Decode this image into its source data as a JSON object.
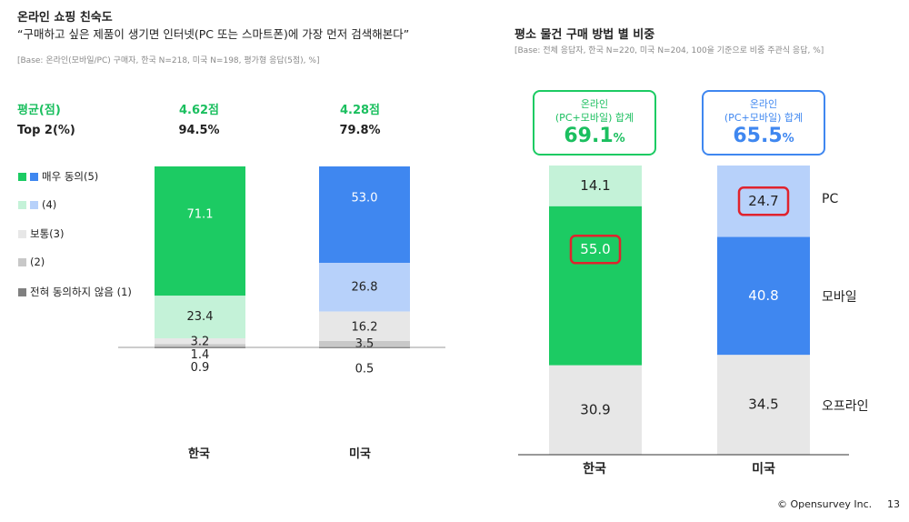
{
  "left": {
    "title": "온라인 쇼핑 친숙도",
    "subtitle": "“구매하고 싶은 제품이 생기면 인터넷(PC 또는 스마트폰)에 가장 먼저 검색해본다”",
    "base": "[Base: 온라인(모바일/PC) 구매자, 한국 N=218, 미국 N=198, 평가형 응답(5점), %]",
    "avg_label": "평균(점)",
    "top2_label": "Top 2(%)",
    "legend": [
      {
        "label": "매우 동의(5)",
        "colors": [
          "#1ccb63",
          "#3f87f0"
        ]
      },
      {
        "label": "(4)",
        "colors": [
          "#c4f2d8",
          "#b7d1fa"
        ]
      },
      {
        "label": "보통(3)",
        "colors": [
          "#e7e7e7"
        ]
      },
      {
        "label": "(2)",
        "colors": [
          "#c8c8c8"
        ]
      },
      {
        "label": "전혀 동의하지 않음 (1)",
        "colors": [
          "#808080"
        ]
      }
    ]
  },
  "right": {
    "title": "평소 물건 구매 방법 별 비중",
    "base": "[Base: 전체 응답자, 한국 N=220, 미국 N=204, 100을 기준으로 비중 주관식 응답, %]",
    "callouts": [
      {
        "label_line1": "온라인",
        "label_line2": "(PC+모바일) 합계",
        "value": "69.1",
        "unit": "%",
        "color": "#1ccb63"
      },
      {
        "label_line1": "온라인",
        "label_line2": "(PC+모바일) 합계",
        "value": "65.5",
        "unit": "%",
        "color": "#3f87f0"
      }
    ]
  },
  "chart_data": [
    {
      "type": "bar",
      "stacked": true,
      "title": "온라인 쇼핑 친숙도",
      "categories": [
        "한국",
        "미국"
      ],
      "averages": [
        "4.62점",
        "4.28점"
      ],
      "top2": [
        "94.5%",
        "79.8%"
      ],
      "series": [
        {
          "name": "매우 동의(5)",
          "values": [
            71.1,
            53.0
          ],
          "labels": [
            "71.1",
            "53.0"
          ],
          "colors": [
            "#1ccb63",
            "#3f87f0"
          ],
          "text_color": "#ffffff"
        },
        {
          "name": "(4)",
          "values": [
            23.4,
            26.8
          ],
          "labels": [
            "23.4",
            "26.8"
          ],
          "colors": [
            "#c4f2d8",
            "#b7d1fa"
          ],
          "text_color": "#222222"
        },
        {
          "name": "보통(3)",
          "values": [
            3.2,
            16.2
          ],
          "labels": [
            "3.2",
            "16.2"
          ],
          "colors": [
            "#e7e7e7",
            "#e7e7e7"
          ],
          "text_color": "#222222"
        },
        {
          "name": "(2)",
          "values": [
            1.4,
            3.5
          ],
          "labels": [
            "1.4",
            "3.5"
          ],
          "colors": [
            "#c8c8c8",
            "#c8c8c8"
          ],
          "text_color": "#222222"
        },
        {
          "name": "전혀 동의하지 않음 (1)",
          "values": [
            0.9,
            0.5
          ],
          "labels": [
            "0.9",
            "0.5"
          ],
          "colors": [
            "#808080",
            "#808080"
          ],
          "text_color": "#222222"
        }
      ],
      "ylim": [
        0,
        100
      ]
    },
    {
      "type": "bar",
      "stacked": true,
      "title": "평소 물건 구매 방법 별 비중",
      "categories": [
        "한국",
        "미국"
      ],
      "series": [
        {
          "name": "PC",
          "values": [
            14.1,
            24.7
          ],
          "labels": [
            "14.1",
            "24.7"
          ],
          "colors": [
            "#c4f2d8",
            "#b7d1fa"
          ],
          "text_color": "#222222",
          "highlight": [
            false,
            true
          ]
        },
        {
          "name": "모바일",
          "values": [
            55.0,
            40.8
          ],
          "labels": [
            "55.0",
            "40.8"
          ],
          "colors": [
            "#1ccb63",
            "#3f87f0"
          ],
          "text_color": "#ffffff",
          "highlight": [
            true,
            false
          ]
        },
        {
          "name": "오프라인",
          "values": [
            30.9,
            34.5
          ],
          "labels": [
            "30.9",
            "34.5"
          ],
          "colors": [
            "#e7e7e7",
            "#e7e7e7"
          ],
          "text_color": "#222222",
          "highlight": [
            false,
            false
          ]
        }
      ],
      "ylim": [
        0,
        100
      ]
    }
  ],
  "footer": {
    "copyright": "© Opensurvey Inc.",
    "page": "13"
  }
}
